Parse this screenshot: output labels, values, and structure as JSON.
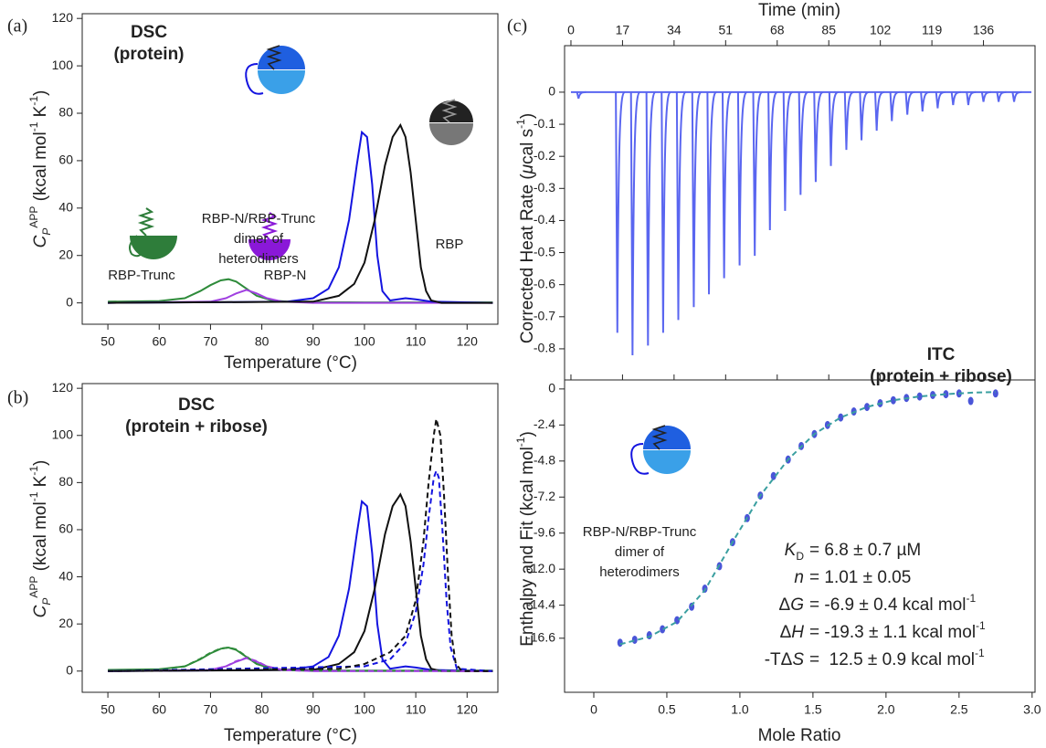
{
  "chart_data": [
    {
      "type": "line",
      "panel_label": "(a)",
      "title": [
        "DSC",
        "(protein)"
      ],
      "xlabel": "Temperature (°C)",
      "ylabel": [
        {
          "text": "C",
          "italic": true
        },
        {
          "text": "P",
          "italic": true,
          "sub": true
        },
        {
          "text": "APP",
          "sup": true
        },
        {
          "text": " (kcal mol"
        },
        {
          "text": "-1",
          "sup": true
        },
        {
          "text": " K"
        },
        {
          "text": "-1",
          "sup": true
        },
        {
          "text": ")"
        }
      ],
      "xlim": [
        45,
        126
      ],
      "ylim": [
        -9,
        122
      ],
      "xticks": [
        50,
        60,
        70,
        80,
        90,
        100,
        110,
        120
      ],
      "yticks": [
        0,
        20,
        40,
        60,
        80,
        100,
        120
      ],
      "series": [
        {
          "color": "#2e8b3a",
          "x": [
            50,
            60,
            65,
            68,
            70,
            72,
            73.5,
            75,
            77,
            79,
            82,
            85,
            90,
            100,
            125
          ],
          "values": [
            0.5,
            0.8,
            2,
            5,
            7.5,
            9.5,
            10,
            9,
            6,
            3,
            1,
            0.5,
            0.3,
            0.2,
            0.2
          ]
        },
        {
          "color": "#a040e0",
          "x": [
            50,
            70,
            73,
            75,
            77,
            79,
            81,
            84,
            90,
            125
          ],
          "values": [
            0,
            0.5,
            2,
            4,
            5.5,
            4,
            2,
            0.5,
            0,
            0
          ]
        },
        {
          "color": "#1414e0",
          "x": [
            50,
            85,
            90,
            93,
            95,
            97,
            98.5,
            99.5,
            100.5,
            101.5,
            102.5,
            103.5,
            105,
            108,
            110,
            113,
            125
          ],
          "values": [
            0,
            0.5,
            2,
            6,
            15,
            35,
            58,
            72,
            70,
            50,
            20,
            5,
            1,
            2,
            1.5,
            0.5,
            0
          ]
        },
        {
          "color": "#111111",
          "x": [
            50,
            90,
            95,
            98,
            100,
            102,
            104,
            105.5,
            107,
            108,
            109,
            110,
            111,
            112,
            113,
            115,
            125
          ],
          "values": [
            0,
            0.5,
            3,
            8,
            17,
            35,
            58,
            70,
            75,
            70,
            55,
            35,
            15,
            5,
            1,
            0,
            0
          ]
        }
      ],
      "annotations": [
        {
          "lines": [
            "RBP-Trunc"
          ],
          "color": "#2e8b3a"
        },
        {
          "lines": [
            "RBP-N"
          ],
          "color": "#a040e0"
        },
        {
          "lines": [
            "RBP-N/RBP-Trunc",
            "dimer of",
            "heterodimers"
          ],
          "color": "#1414e0"
        },
        {
          "lines": [
            "RBP"
          ],
          "color": "#333333"
        }
      ]
    },
    {
      "type": "line",
      "panel_label": "(b)",
      "title": [
        "DSC",
        "(protein + ribose)"
      ],
      "xlabel": "Temperature (°C)",
      "ylabel": [
        {
          "text": "C",
          "italic": true
        },
        {
          "text": "P",
          "italic": true,
          "sub": true
        },
        {
          "text": "APP",
          "sup": true
        },
        {
          "text": " (kcal mol"
        },
        {
          "text": "-1",
          "sup": true
        },
        {
          "text": " K"
        },
        {
          "text": "-1",
          "sup": true
        },
        {
          "text": ")"
        }
      ],
      "xlim": [
        45,
        126
      ],
      "ylim": [
        -9,
        122
      ],
      "xticks": [
        50,
        60,
        70,
        80,
        90,
        100,
        110,
        120
      ],
      "yticks": [
        0,
        20,
        40,
        60,
        80,
        100,
        120
      ],
      "series": [
        {
          "color": "#2e8b3a",
          "x": [
            50,
            60,
            65,
            68,
            70,
            72,
            73.5,
            75,
            77,
            79,
            82,
            85,
            90,
            100,
            125
          ],
          "values": [
            0.5,
            0.8,
            2,
            5,
            7.5,
            9.5,
            10,
            9,
            6,
            3,
            1,
            0.5,
            0.3,
            0.2,
            0.2
          ]
        },
        {
          "color": "#a040e0",
          "x": [
            50,
            70,
            73,
            75,
            77,
            79,
            81,
            84,
            90,
            125
          ],
          "values": [
            0,
            0.5,
            2,
            4,
            5.5,
            4,
            2,
            0.5,
            0,
            0
          ]
        },
        {
          "color": "#1414e0",
          "x": [
            50,
            85,
            90,
            93,
            95,
            97,
            98.5,
            99.5,
            100.5,
            101.5,
            102.5,
            103.5,
            105,
            108,
            110,
            113,
            125
          ],
          "values": [
            0,
            0.5,
            2,
            6,
            15,
            35,
            58,
            72,
            70,
            50,
            20,
            5,
            1,
            2,
            1.5,
            0.5,
            0
          ]
        },
        {
          "color": "#111111",
          "x": [
            50,
            90,
            95,
            98,
            100,
            102,
            104,
            105.5,
            107,
            108,
            109,
            110,
            111,
            112,
            113,
            115,
            125
          ],
          "values": [
            0,
            0.5,
            3,
            8,
            17,
            35,
            58,
            70,
            75,
            70,
            55,
            35,
            15,
            5,
            1,
            0,
            0
          ]
        },
        {
          "color": "#2e8b3a",
          "dash": true,
          "x": [
            50,
            60,
            65,
            68,
            70,
            72,
            73.5,
            75,
            77,
            79,
            82,
            85,
            90,
            100,
            125
          ],
          "values": [
            0.3,
            0.6,
            2,
            5.2,
            7.8,
            9.6,
            10,
            9.2,
            6.2,
            3,
            1,
            0.4,
            0.2,
            0.1,
            0.1
          ]
        },
        {
          "color": "#a040e0",
          "dash": true,
          "x": [
            50,
            70,
            73,
            75,
            77,
            79,
            81,
            84,
            90,
            125
          ],
          "values": [
            0,
            0.4,
            2,
            4.2,
            5.6,
            4.2,
            2,
            0.4,
            0,
            0
          ]
        },
        {
          "color": "#1414e0",
          "dash": true,
          "x": [
            50,
            100,
            105,
            108,
            110,
            111.5,
            112.5,
            113.5,
            114,
            114.5,
            115.2,
            116,
            116.8,
            118,
            125
          ],
          "values": [
            0,
            2,
            5,
            12,
            25,
            45,
            65,
            82,
            85,
            82,
            60,
            30,
            10,
            1,
            0
          ]
        },
        {
          "color": "#111111",
          "dash": true,
          "x": [
            50,
            95,
            100,
            105,
            108,
            110,
            111.5,
            112.5,
            113.5,
            114,
            114.8,
            115.5,
            116.3,
            117,
            117.8,
            119,
            125
          ],
          "values": [
            0,
            1,
            3,
            8,
            15,
            30,
            55,
            80,
            100,
            107,
            100,
            75,
            40,
            15,
            3,
            0,
            0
          ]
        }
      ]
    },
    {
      "type": "trace",
      "panel_label": "(c)",
      "title": [
        "ITC",
        "(protein + ribose)"
      ],
      "xlabel": "Time (min)",
      "xaxis": "top",
      "ylabel": [
        {
          "text": "Corrected Heat Rate ("
        },
        {
          "text": "μ",
          "italic": true
        },
        {
          "text": "cal s"
        },
        {
          "text": "-1",
          "sup": true
        },
        {
          "text": ")"
        }
      ],
      "xlim": [
        -2.1,
        153
      ],
      "ylim": [
        -0.897,
        0.145
      ],
      "xticks": [
        0,
        17,
        34,
        51,
        68,
        85,
        102,
        119,
        136
      ],
      "yticks": [
        0,
        -0.1,
        -0.2,
        -0.3,
        -0.4,
        -0.5,
        -0.6,
        -0.7,
        -0.8
      ],
      "color": "#5a66f0",
      "x": [
        2,
        14.8,
        19.8,
        24.9,
        29.9,
        34.9,
        40,
        45,
        50,
        55.1,
        60.1,
        65.1,
        70.1,
        75.2,
        80.2,
        85.2,
        90.3,
        95.3,
        100.3,
        105.3,
        110.4,
        115.4,
        120.4,
        125.5,
        130.5,
        135.5,
        140.5,
        145.6
      ],
      "values": [
        -0.02,
        -0.75,
        -0.82,
        -0.79,
        -0.75,
        -0.71,
        -0.67,
        -0.63,
        -0.58,
        -0.54,
        -0.51,
        -0.43,
        -0.37,
        -0.32,
        -0.28,
        -0.23,
        -0.18,
        -0.15,
        -0.12,
        -0.09,
        -0.07,
        -0.06,
        -0.05,
        -0.04,
        -0.04,
        -0.03,
        -0.03,
        -0.03
      ]
    },
    {
      "type": "scatter",
      "xlabel": "Mole Ratio",
      "ylabel": [
        {
          "text": "Enthalpy and Fit (kcal mol"
        },
        {
          "text": "-1",
          "sup": true
        },
        {
          "text": ")"
        }
      ],
      "xlim": [
        -0.2,
        3.02
      ],
      "ylim": [
        -20.2,
        0.6
      ],
      "xticks": [
        0,
        0.5,
        {
          "value": 1,
          "label": "1.0"
        },
        1.5,
        {
          "value": 2,
          "label": "2.0"
        },
        2.5,
        {
          "value": 3,
          "label": "3.0"
        }
      ],
      "yticks": [
        0,
        -2.4,
        -4.8,
        -7.2,
        -9.6,
        {
          "value": -12,
          "label": "-12.0"
        },
        -14.4,
        -16.6
      ],
      "series": [
        {
          "color": "#4a55d8",
          "x": [
            0.18,
            0.28,
            0.38,
            0.47,
            0.57,
            0.67,
            0.76,
            0.86,
            0.95,
            1.05,
            1.14,
            1.23,
            1.33,
            1.42,
            1.51,
            1.6,
            1.69,
            1.78,
            1.87,
            1.96,
            2.05,
            2.14,
            2.23,
            2.32,
            2.41,
            2.5,
            2.58,
            2.75
          ],
          "values": [
            -16.9,
            -16.7,
            -16.4,
            -16.0,
            -15.4,
            -14.5,
            -13.3,
            -11.8,
            -10.2,
            -8.6,
            -7.1,
            -5.8,
            -4.7,
            -3.8,
            -3.0,
            -2.4,
            -1.9,
            -1.5,
            -1.2,
            -0.95,
            -0.75,
            -0.6,
            -0.5,
            -0.4,
            -0.35,
            -0.3,
            -0.8,
            -0.3
          ]
        },
        {
          "color": "#3a9fa0",
          "mode": "line",
          "dash": true,
          "x": [
            0.18,
            0.38,
            0.57,
            0.76,
            0.95,
            1.14,
            1.33,
            1.51,
            1.69,
            1.87,
            2.05,
            2.23,
            2.41,
            2.58,
            2.75
          ],
          "values": [
            -17.0,
            -16.5,
            -15.5,
            -13.4,
            -10.2,
            -7.1,
            -4.7,
            -3.0,
            -1.9,
            -1.2,
            -0.75,
            -0.5,
            -0.35,
            -0.25,
            -0.2
          ]
        }
      ],
      "annotations": [
        {
          "lines": [
            "RBP-N/RBP-Trunc",
            "dimer of",
            "heterodimers"
          ],
          "color": "#1414e0"
        }
      ],
      "parameters": [
        {
          "symbol": "K",
          "sub": "D",
          "text": "= 6.8 ± 0.7 µM"
        },
        {
          "symbol": "n",
          "text": "= 1.01 ± 0.05"
        },
        {
          "prefix": "Δ",
          "symbol": "G",
          "text": "= -6.9 ± 0.4 kcal mol",
          "sup": "-1"
        },
        {
          "prefix": "Δ",
          "symbol": "H",
          "text": "= -19.3 ± 1.1 kcal mol",
          "sup": "-1"
        },
        {
          "prefix": "-TΔ",
          "symbol": "S",
          "text": "=  12.5 ± 0.9 kcal mol",
          "sup": "-1"
        }
      ]
    }
  ]
}
